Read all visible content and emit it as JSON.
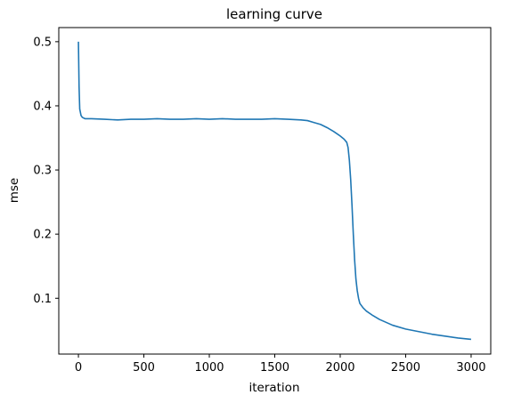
{
  "chart_data": {
    "type": "line",
    "title": "learning curve",
    "xlabel": "iteration",
    "ylabel": "mse",
    "xlim": [
      -150,
      3150
    ],
    "ylim": [
      0.013,
      0.522
    ],
    "xticks": [
      0,
      500,
      1000,
      1500,
      2000,
      2500,
      3000
    ],
    "yticks": [
      0.1,
      0.2,
      0.3,
      0.4,
      0.5
    ],
    "xtick_labels": [
      "0",
      "500",
      "1000",
      "1500",
      "2000",
      "2500",
      "3000"
    ],
    "ytick_labels": [
      "0.1",
      "0.2",
      "0.3",
      "0.4",
      "0.5"
    ],
    "grid": false,
    "color": "#1f77b4",
    "series": [
      {
        "x": [
          0,
          5,
          10,
          20,
          30,
          50,
          100,
          200,
          300,
          400,
          500,
          600,
          700,
          800,
          900,
          1000,
          1100,
          1200,
          1300,
          1400,
          1500,
          1600,
          1700,
          1750,
          1800,
          1850,
          1900,
          1950,
          2000,
          2030,
          2050,
          2060,
          2070,
          2080,
          2090,
          2100,
          2110,
          2120,
          2130,
          2140,
          2150,
          2175,
          2200,
          2250,
          2300,
          2400,
          2500,
          2600,
          2700,
          2800,
          2900,
          3000
        ],
        "y": [
          0.5,
          0.43,
          0.395,
          0.385,
          0.382,
          0.38,
          0.38,
          0.379,
          0.378,
          0.379,
          0.379,
          0.38,
          0.379,
          0.379,
          0.38,
          0.379,
          0.38,
          0.379,
          0.379,
          0.379,
          0.38,
          0.379,
          0.378,
          0.377,
          0.374,
          0.371,
          0.366,
          0.36,
          0.353,
          0.348,
          0.343,
          0.335,
          0.315,
          0.285,
          0.245,
          0.2,
          0.16,
          0.13,
          0.112,
          0.1,
          0.092,
          0.085,
          0.08,
          0.073,
          0.067,
          0.058,
          0.052,
          0.048,
          0.044,
          0.041,
          0.038,
          0.036
        ]
      }
    ]
  }
}
